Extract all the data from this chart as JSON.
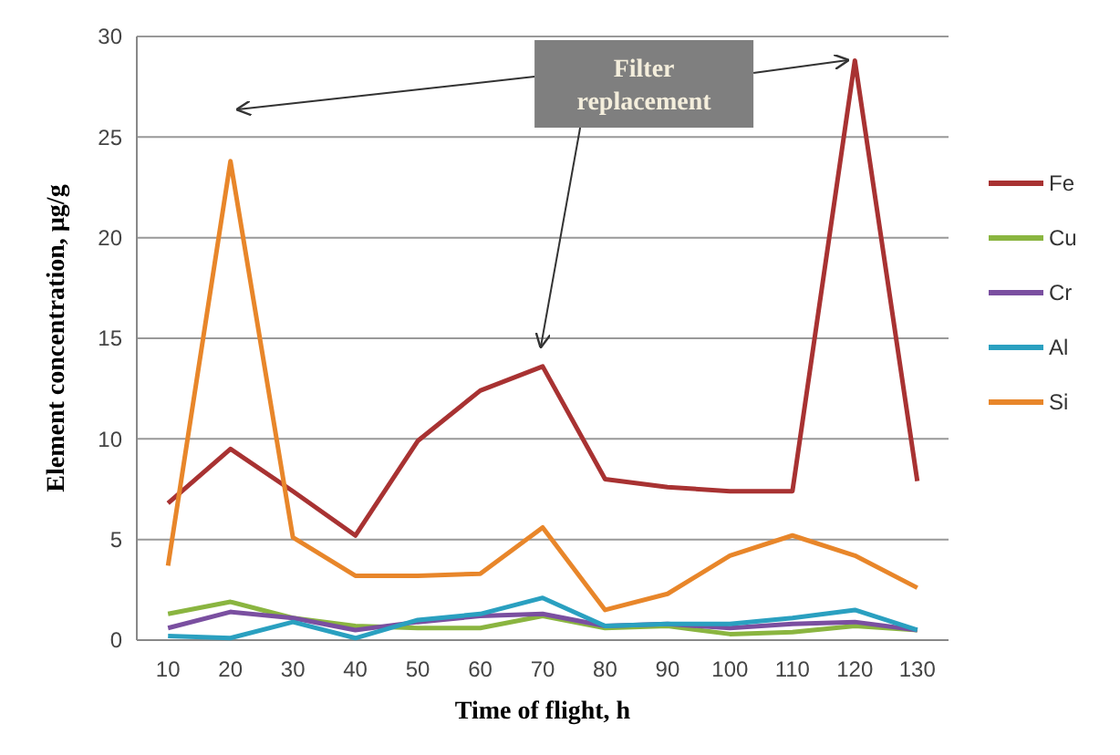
{
  "chart_data": {
    "type": "line",
    "xlabel": "Time of flight, h",
    "ylabel": "Element concentration, µg/g",
    "categories": [
      "10",
      "20",
      "30",
      "40",
      "50",
      "60",
      "70",
      "80",
      "90",
      "100",
      "110",
      "120",
      "130"
    ],
    "series": [
      {
        "name": "Fe",
        "color": "#a83232",
        "values": [
          6.8,
          9.5,
          7.4,
          5.2,
          9.9,
          12.4,
          13.6,
          8.0,
          7.6,
          7.4,
          7.4,
          28.8,
          7.9
        ]
      },
      {
        "name": "Cu",
        "color": "#8ab540",
        "values": [
          1.3,
          1.9,
          1.1,
          0.7,
          0.6,
          0.6,
          1.2,
          0.6,
          0.7,
          0.3,
          0.4,
          0.7,
          0.5
        ]
      },
      {
        "name": "Cr",
        "color": "#7a4fa0",
        "values": [
          0.6,
          1.4,
          1.1,
          0.5,
          0.9,
          1.2,
          1.3,
          0.7,
          0.8,
          0.6,
          0.8,
          0.9,
          0.5
        ]
      },
      {
        "name": "Al",
        "color": "#2aa0c0",
        "values": [
          0.2,
          0.1,
          0.9,
          0.1,
          1.0,
          1.3,
          2.1,
          0.7,
          0.8,
          0.8,
          1.1,
          1.5,
          0.5
        ]
      },
      {
        "name": "Si",
        "color": "#e8862a",
        "values": [
          3.7,
          23.8,
          5.1,
          3.2,
          3.2,
          3.3,
          5.6,
          1.5,
          2.3,
          4.2,
          5.2,
          4.2,
          2.6
        ]
      }
    ],
    "ylim": [
      0,
      30
    ],
    "yticks": [
      0,
      5,
      10,
      15,
      20,
      25,
      30
    ],
    "grid": "y",
    "legend": "right",
    "marker": "none",
    "line_style": "solid",
    "annotations": [
      "Filter replacement"
    ]
  }
}
